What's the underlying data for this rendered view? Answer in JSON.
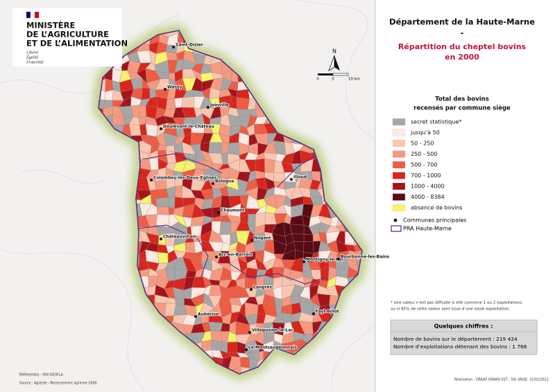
{
  "logo": {
    "lines": [
      "MINISTÈRE",
      "DE L’AGRICULTURE",
      "ET DE L’ALIMENTATION"
    ],
    "motto": [
      "Liberté",
      "Égalité",
      "Fraternité"
    ]
  },
  "title": {
    "line1": "Département de la Haute-Marne",
    "dash": "-",
    "line2": "Répartition du cheptel bovins",
    "line3": "en 2000"
  },
  "scale": {
    "north": "N",
    "labels": [
      "0",
      "5",
      "10 km"
    ]
  },
  "legend": {
    "title": [
      "Total des bovins",
      "recensés par commune siège"
    ],
    "items": [
      {
        "label": "secret statistique*",
        "color": "#a6a6a6"
      },
      {
        "label": "jusqu’à 50",
        "color": "#fde9e1"
      },
      {
        "label": "50 - 250",
        "color": "#fbc6b0"
      },
      {
        "label": "250 - 500",
        "color": "#f59a80"
      },
      {
        "label": "500 - 700",
        "color": "#ee5c44"
      },
      {
        "label": "700 - 1000",
        "color": "#d8261d"
      },
      {
        "label": "1000 - 4000",
        "color": "#a5141b"
      },
      {
        "label": "4000 - 8384",
        "color": "#5a0a12"
      },
      {
        "label": "absence de bovins",
        "color": "#f8f36b"
      }
    ],
    "points": "Communes principales",
    "boundary": "PRA Haute-Marne"
  },
  "towns": [
    "Saint-Dizier",
    "Wassy",
    "Joinville",
    "Doulevant-le-Château",
    "Colombey-les-Deux-Églises",
    "Bologne",
    "Illoud",
    "Chaumont",
    "Châteauvillain",
    "Nogent",
    "Arc-en-Barrois",
    "Montigny-le-Roi",
    "Bourbonne-les-Bains",
    "Langres",
    "Fayl-Billot",
    "Auberive",
    "Villegusien-le-Lac",
    "Le Montsaugeonnais"
  ],
  "footnote": [
    "* Une valeur n’est pas diffusée si elle concerne 1 ou 2 exploitations,",
    "ou si 85% de cette valeur sont issus d’une seule exploitation."
  ],
  "key_figures": {
    "title": "Quelques chiffres :",
    "lines": [
      "Nombre de bovins sur le département : 219 424",
      "Nombre d’exploitations détenant des bovins : 1 766"
    ]
  },
  "credits": {
    "references": "Référentiels : IGN GEOFLA",
    "source": "Source : Agreste - Recensement agricole 2000",
    "realisation": "Réalisation : DRAAF GRAND EST - SIG SRISE. 15/02/2022"
  }
}
